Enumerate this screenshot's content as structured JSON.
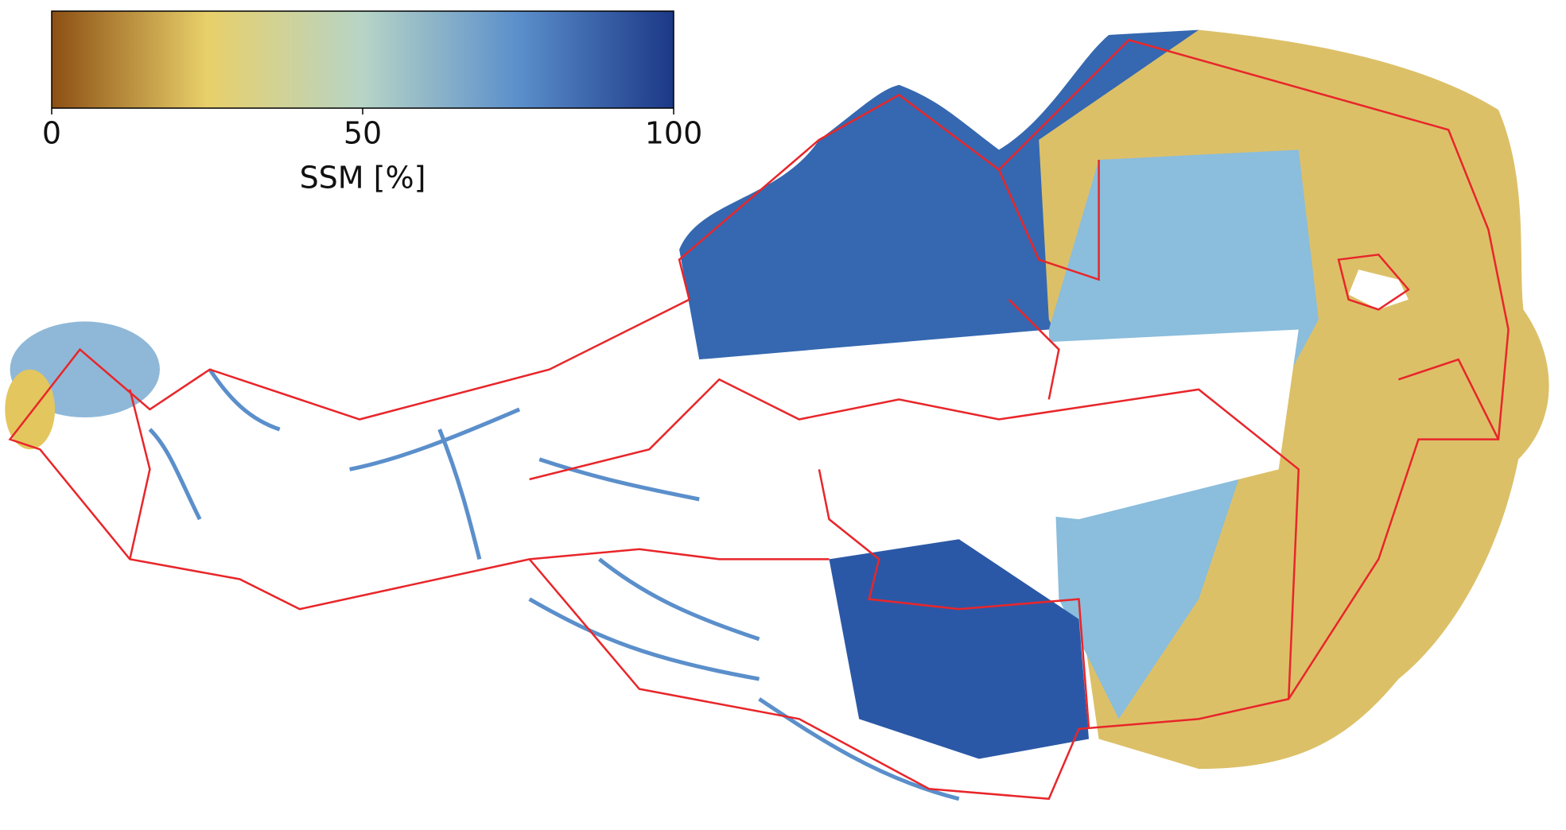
{
  "colorbar": {
    "label": "SSM [%]",
    "lim": [
      0,
      100
    ],
    "ticks": [
      0,
      50,
      100
    ],
    "colors": [
      "#8c4f14",
      "#e8d06a",
      "#b7d4c6",
      "#5b8fcb",
      "#1c3887"
    ]
  }
}
